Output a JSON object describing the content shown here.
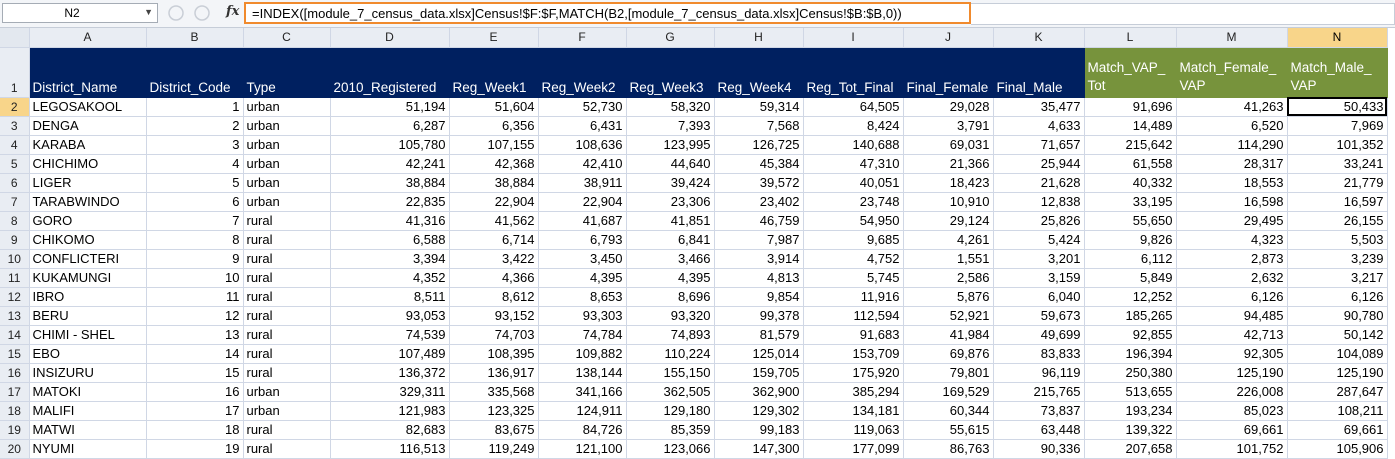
{
  "name_box": "N2",
  "formula": "=INDEX([module_7_census_data.xlsx]Census!$F:$F,MATCH(B2,[module_7_census_data.xlsx]Census!$B:$B,0))",
  "fx_label": "fx",
  "columns": [
    "A",
    "B",
    "C",
    "D",
    "E",
    "F",
    "G",
    "H",
    "I",
    "J",
    "K",
    "L",
    "M",
    "N"
  ],
  "selected_column": "N",
  "selected_row": "2",
  "header_row_number": "1",
  "headers": [
    "District_Name",
    "District_Code",
    "Type",
    "2010_Registered",
    "Reg_Week1",
    "Reg_Week2",
    "Reg_Week3",
    "Reg_Week4",
    "Reg_Tot_Final",
    "Final_Female",
    "Final_Male",
    "Match_VAP_ Tot",
    "Match_Female_ VAP",
    "Match_Male_ VAP"
  ],
  "rows": [
    {
      "n": "2",
      "cells": [
        "LEGOSAKOOL",
        "1",
        "urban",
        "51,194",
        "51,604",
        "52,730",
        "58,320",
        "59,314",
        "64,505",
        "29,028",
        "35,477",
        "91,696",
        "41,263",
        "50,433"
      ]
    },
    {
      "n": "3",
      "cells": [
        "DENGA",
        "2",
        "urban",
        "6,287",
        "6,356",
        "6,431",
        "7,393",
        "7,568",
        "8,424",
        "3,791",
        "4,633",
        "14,489",
        "6,520",
        "7,969"
      ]
    },
    {
      "n": "4",
      "cells": [
        "KARABA",
        "3",
        "urban",
        "105,780",
        "107,155",
        "108,636",
        "123,995",
        "126,725",
        "140,688",
        "69,031",
        "71,657",
        "215,642",
        "114,290",
        "101,352"
      ]
    },
    {
      "n": "5",
      "cells": [
        "CHICHIMO",
        "4",
        "urban",
        "42,241",
        "42,368",
        "42,410",
        "44,640",
        "45,384",
        "47,310",
        "21,366",
        "25,944",
        "61,558",
        "28,317",
        "33,241"
      ]
    },
    {
      "n": "6",
      "cells": [
        "LIGER",
        "5",
        "urban",
        "38,884",
        "38,884",
        "38,911",
        "39,424",
        "39,572",
        "40,051",
        "18,423",
        "21,628",
        "40,332",
        "18,553",
        "21,779"
      ]
    },
    {
      "n": "7",
      "cells": [
        "TARABWINDO",
        "6",
        "urban",
        "22,835",
        "22,904",
        "22,904",
        "23,306",
        "23,402",
        "23,748",
        "10,910",
        "12,838",
        "33,195",
        "16,598",
        "16,597"
      ]
    },
    {
      "n": "8",
      "cells": [
        "GORO",
        "7",
        "rural",
        "41,316",
        "41,562",
        "41,687",
        "41,851",
        "46,759",
        "54,950",
        "29,124",
        "25,826",
        "55,650",
        "29,495",
        "26,155"
      ]
    },
    {
      "n": "9",
      "cells": [
        "CHIKOMO",
        "8",
        "rural",
        "6,588",
        "6,714",
        "6,793",
        "6,841",
        "7,987",
        "9,685",
        "4,261",
        "5,424",
        "9,826",
        "4,323",
        "5,503"
      ]
    },
    {
      "n": "10",
      "cells": [
        "CONFLICTERI",
        "9",
        "rural",
        "3,394",
        "3,422",
        "3,450",
        "3,466",
        "3,914",
        "4,752",
        "1,551",
        "3,201",
        "6,112",
        "2,873",
        "3,239"
      ]
    },
    {
      "n": "11",
      "cells": [
        "KUKAMUNGI",
        "10",
        "rural",
        "4,352",
        "4,366",
        "4,395",
        "4,395",
        "4,813",
        "5,745",
        "2,586",
        "3,159",
        "5,849",
        "2,632",
        "3,217"
      ]
    },
    {
      "n": "12",
      "cells": [
        "IBRO",
        "11",
        "rural",
        "8,511",
        "8,612",
        "8,653",
        "8,696",
        "9,854",
        "11,916",
        "5,876",
        "6,040",
        "12,252",
        "6,126",
        "6,126"
      ]
    },
    {
      "n": "13",
      "cells": [
        "BERU",
        "12",
        "rural",
        "93,053",
        "93,152",
        "93,303",
        "93,320",
        "99,378",
        "112,594",
        "52,921",
        "59,673",
        "185,265",
        "94,485",
        "90,780"
      ]
    },
    {
      "n": "14",
      "cells": [
        "CHIMI - SHEL",
        "13",
        "rural",
        "74,539",
        "74,703",
        "74,784",
        "74,893",
        "81,579",
        "91,683",
        "41,984",
        "49,699",
        "92,855",
        "42,713",
        "50,142"
      ]
    },
    {
      "n": "15",
      "cells": [
        "EBO",
        "14",
        "rural",
        "107,489",
        "108,395",
        "109,882",
        "110,224",
        "125,014",
        "153,709",
        "69,876",
        "83,833",
        "196,394",
        "92,305",
        "104,089"
      ]
    },
    {
      "n": "16",
      "cells": [
        "INSIZURU",
        "15",
        "rural",
        "136,372",
        "136,917",
        "138,144",
        "155,150",
        "159,705",
        "175,920",
        "79,801",
        "96,119",
        "250,380",
        "125,190",
        "125,190"
      ]
    },
    {
      "n": "17",
      "cells": [
        "MATOKI",
        "16",
        "urban",
        "329,311",
        "335,568",
        "341,166",
        "362,505",
        "362,900",
        "385,294",
        "169,529",
        "215,765",
        "513,655",
        "226,008",
        "287,647"
      ]
    },
    {
      "n": "18",
      "cells": [
        "MALIFI",
        "17",
        "urban",
        "121,983",
        "123,325",
        "124,911",
        "129,180",
        "129,302",
        "134,181",
        "60,344",
        "73,837",
        "193,234",
        "85,023",
        "108,211"
      ]
    },
    {
      "n": "19",
      "cells": [
        "MATWI",
        "18",
        "rural",
        "82,683",
        "83,675",
        "84,726",
        "85,359",
        "99,183",
        "119,063",
        "55,615",
        "63,448",
        "139,322",
        "69,661",
        "69,661"
      ]
    },
    {
      "n": "20",
      "cells": [
        "NYUMI",
        "19",
        "rural",
        "116,513",
        "119,249",
        "121,100",
        "123,066",
        "147,300",
        "177,099",
        "86,763",
        "90,336",
        "207,658",
        "101,752",
        "105,906"
      ]
    }
  ],
  "colors": {
    "header_navy": "#002060",
    "header_green": "#77933c",
    "selection_highlight": "#f8d58a",
    "formula_outline": "#f08a2d"
  }
}
